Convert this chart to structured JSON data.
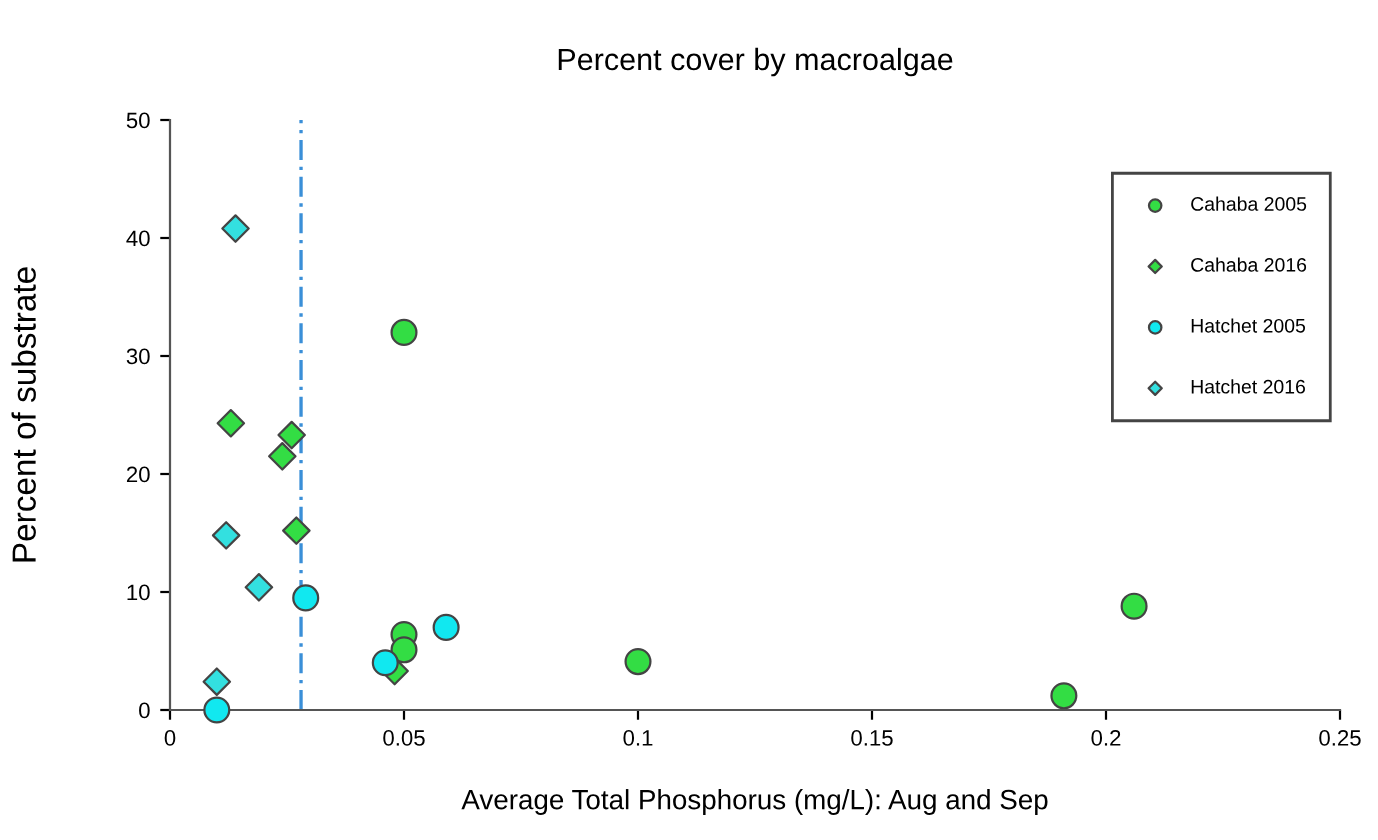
{
  "chart_data": {
    "type": "scatter",
    "title": "Percent cover by macroalgae",
    "xlabel": "Average Total Phosphorus (mg/L): Aug and Sep",
    "ylabel": "Percent of substrate",
    "series": [
      {
        "name": "Cahaba 2005",
        "color": "#33dd44",
        "marker": "circle",
        "x": [
          0.05,
          0.05,
          0.05,
          0.1,
          0.191,
          0.206
        ],
        "values": [
          32,
          6.4,
          5.1,
          4.1,
          1.2,
          8.8
        ]
      },
      {
        "name": "Cahaba 2016",
        "color": "#33dd44",
        "marker": "diamond",
        "x": [
          0.013,
          0.026,
          0.024,
          0.027,
          0.048
        ],
        "values": [
          24.3,
          23.3,
          21.5,
          15.2,
          3.3
        ]
      },
      {
        "name": "Hatchet 2005",
        "color": "#11e8f0",
        "marker": "circle",
        "x": [
          0.01,
          0.029,
          0.046,
          0.059
        ],
        "values": [
          0,
          9.5,
          4,
          7
        ]
      },
      {
        "name": "Hatchet 2016",
        "color": "#33e0e0",
        "marker": "diamond",
        "x": [
          0.014,
          0.012,
          0.019,
          0.01
        ],
        "values": [
          40.8,
          14.8,
          10.4,
          2.4
        ]
      }
    ],
    "ref_lines": [
      {
        "axis": "x",
        "value": 0.028,
        "color": "#3a8fd8",
        "line_style": "dashed"
      }
    ],
    "xlim": [
      0,
      0.25
    ],
    "xticks": [
      0,
      0.05,
      0.1,
      0.15,
      0.2,
      0.25
    ],
    "ylim": [
      0,
      50
    ],
    "yticks": [
      0,
      10,
      20,
      30,
      40,
      50
    ],
    "legend": "right",
    "grid": false
  }
}
